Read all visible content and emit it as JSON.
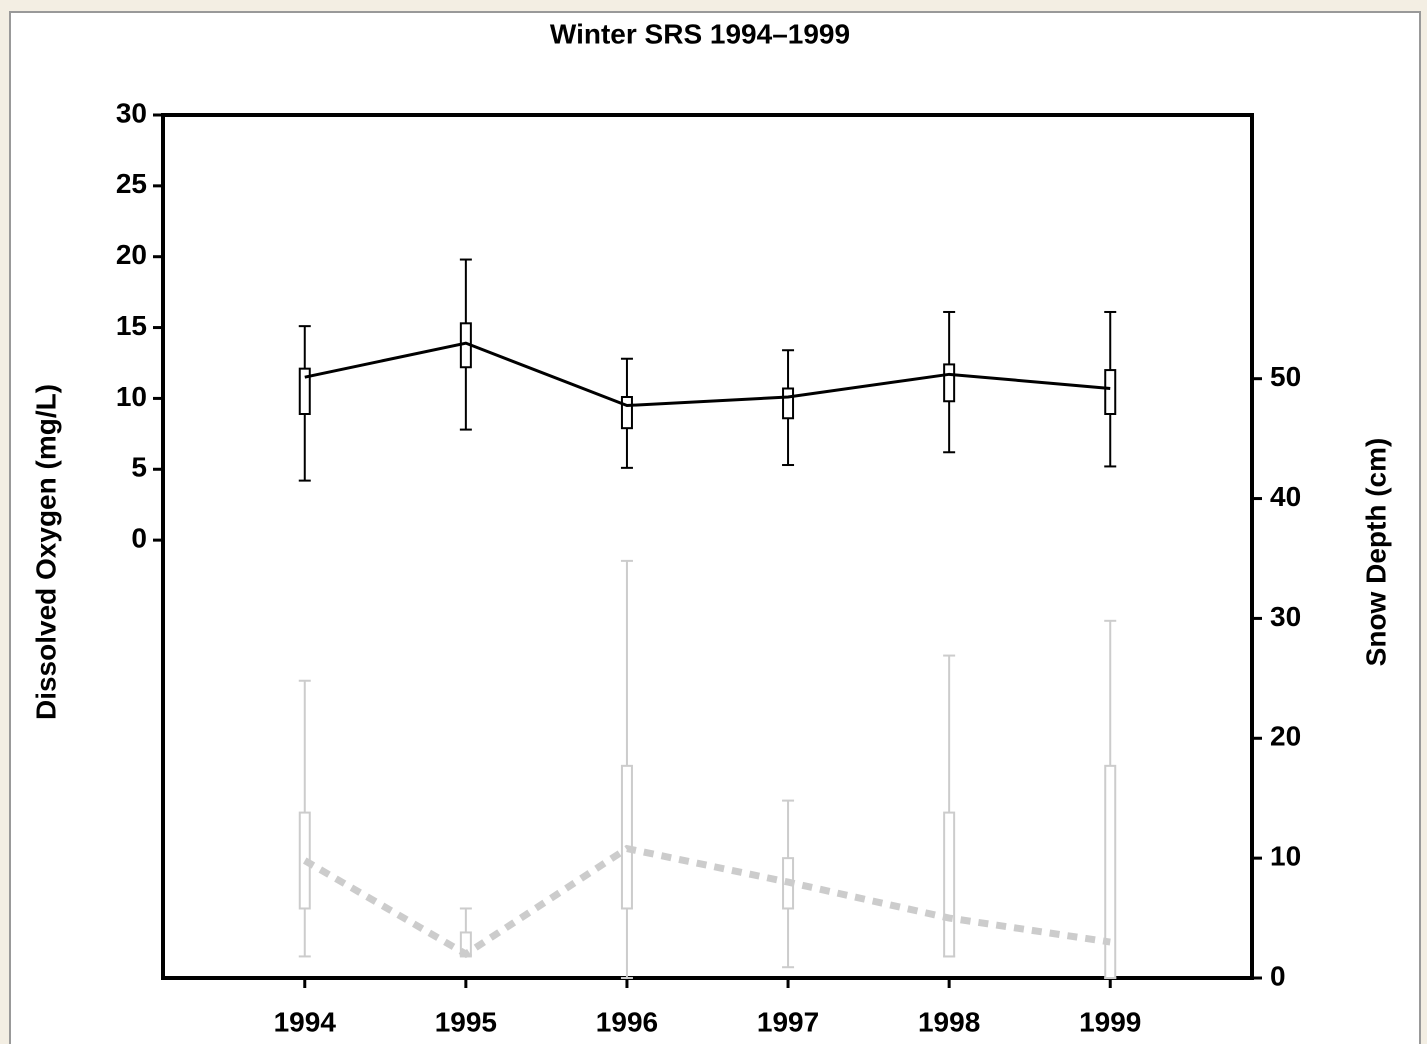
{
  "chart_data": {
    "type": "box_line",
    "title": "Winter SRS 1994–1999",
    "ylabel": "Dissolved Oxygen (mg/L)",
    "y2label": "Snow Depth (cm)",
    "x": [
      1994,
      1995,
      1996,
      1997,
      1998,
      1999
    ],
    "xlim": [
      1993.12,
      1999.88
    ],
    "xticks": [
      1994,
      1995,
      1996,
      1997,
      1998,
      1999
    ],
    "ylim": [
      -30.9,
      30
    ],
    "yticks": [
      0,
      5,
      10,
      15,
      20,
      25,
      30
    ],
    "y2lim": [
      0,
      72
    ],
    "y2ticks": [
      0,
      10,
      20,
      30,
      40,
      50
    ],
    "series": [
      {
        "color": "#000000",
        "axis": "y",
        "line_style": "solid",
        "values": [
          11.5,
          13.9,
          9.5,
          10.1,
          11.7,
          10.7
        ],
        "low": [
          4.2,
          7.8,
          5.1,
          5.3,
          6.2,
          5.2
        ],
        "q1": [
          8.9,
          12.2,
          7.9,
          8.6,
          9.8,
          8.9
        ],
        "q3": [
          12.1,
          15.3,
          10.1,
          10.7,
          12.4,
          12.0
        ],
        "high": [
          15.1,
          19.8,
          12.8,
          13.4,
          16.1,
          16.1
        ]
      },
      {
        "color": "#cccccc",
        "axis": "y2",
        "line_style": "dashed",
        "values": [
          9.8,
          2.0,
          10.8,
          8.0,
          5.0,
          3.0
        ],
        "low": [
          1.8,
          1.9,
          0,
          0.9,
          1.8,
          0
        ],
        "q1": [
          5.8,
          1.8,
          5.8,
          5.8,
          1.8,
          0
        ],
        "q3": [
          13.8,
          3.8,
          17.7,
          10.0,
          13.8,
          17.7
        ],
        "high": [
          24.8,
          5.8,
          34.8,
          14.8,
          26.9,
          29.8
        ]
      }
    ]
  }
}
